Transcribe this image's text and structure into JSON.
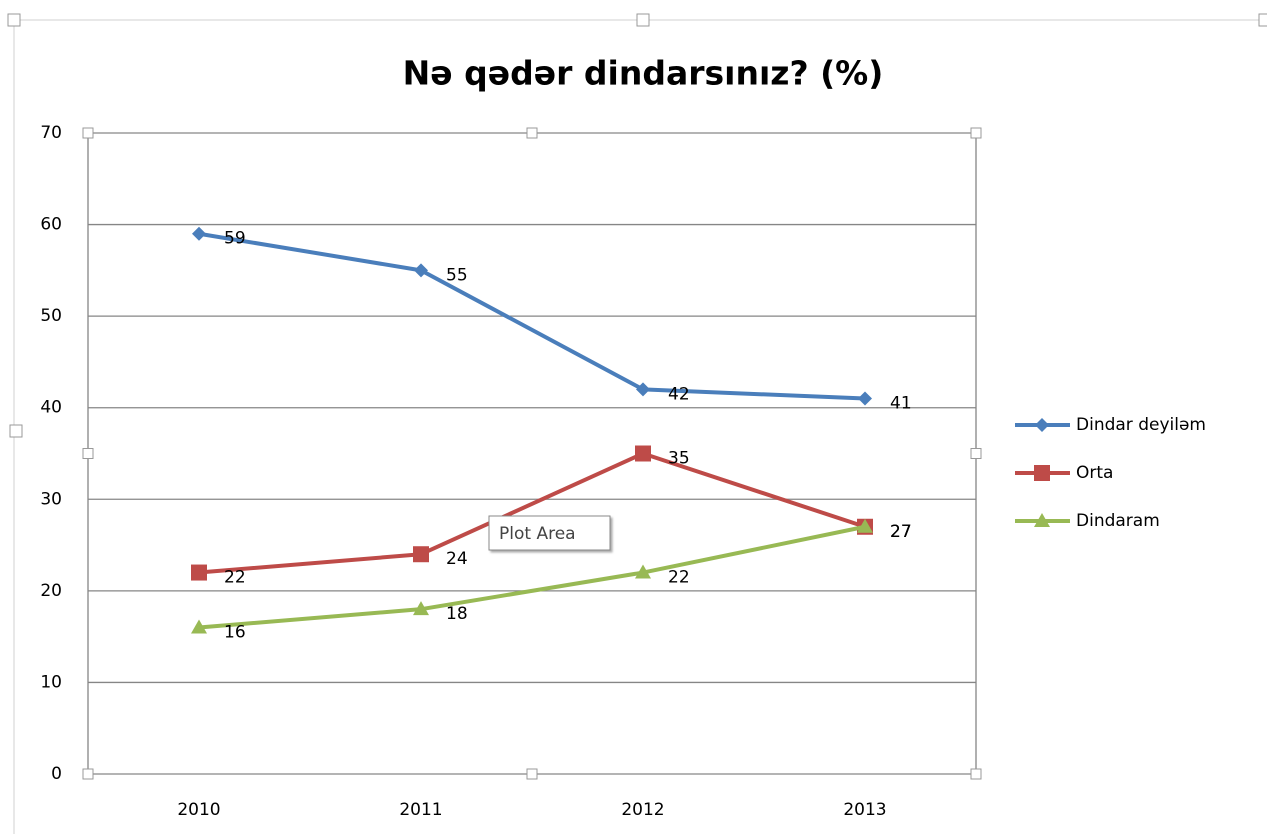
{
  "chart_data": {
    "type": "line",
    "title": "Nə qədər dindarsınız?  (%)",
    "categories": [
      "2010",
      "2011",
      "2012",
      "2013"
    ],
    "series": [
      {
        "name": "Dindar deyiləm",
        "color": "#4a7ebb",
        "marker": "diamond",
        "values": [
          59,
          55,
          42,
          41
        ]
      },
      {
        "name": "Orta",
        "color": "#be4b48",
        "marker": "square",
        "values": [
          22,
          24,
          35,
          27
        ]
      },
      {
        "name": "Dindaram",
        "color": "#98b954",
        "marker": "triangle",
        "values": [
          16,
          18,
          22,
          27
        ]
      }
    ],
    "ylim": [
      0,
      70
    ],
    "yticks": [
      0,
      10,
      20,
      30,
      40,
      50,
      60,
      70
    ],
    "grid": true,
    "legend": "right",
    "tooltip": "Plot Area"
  }
}
